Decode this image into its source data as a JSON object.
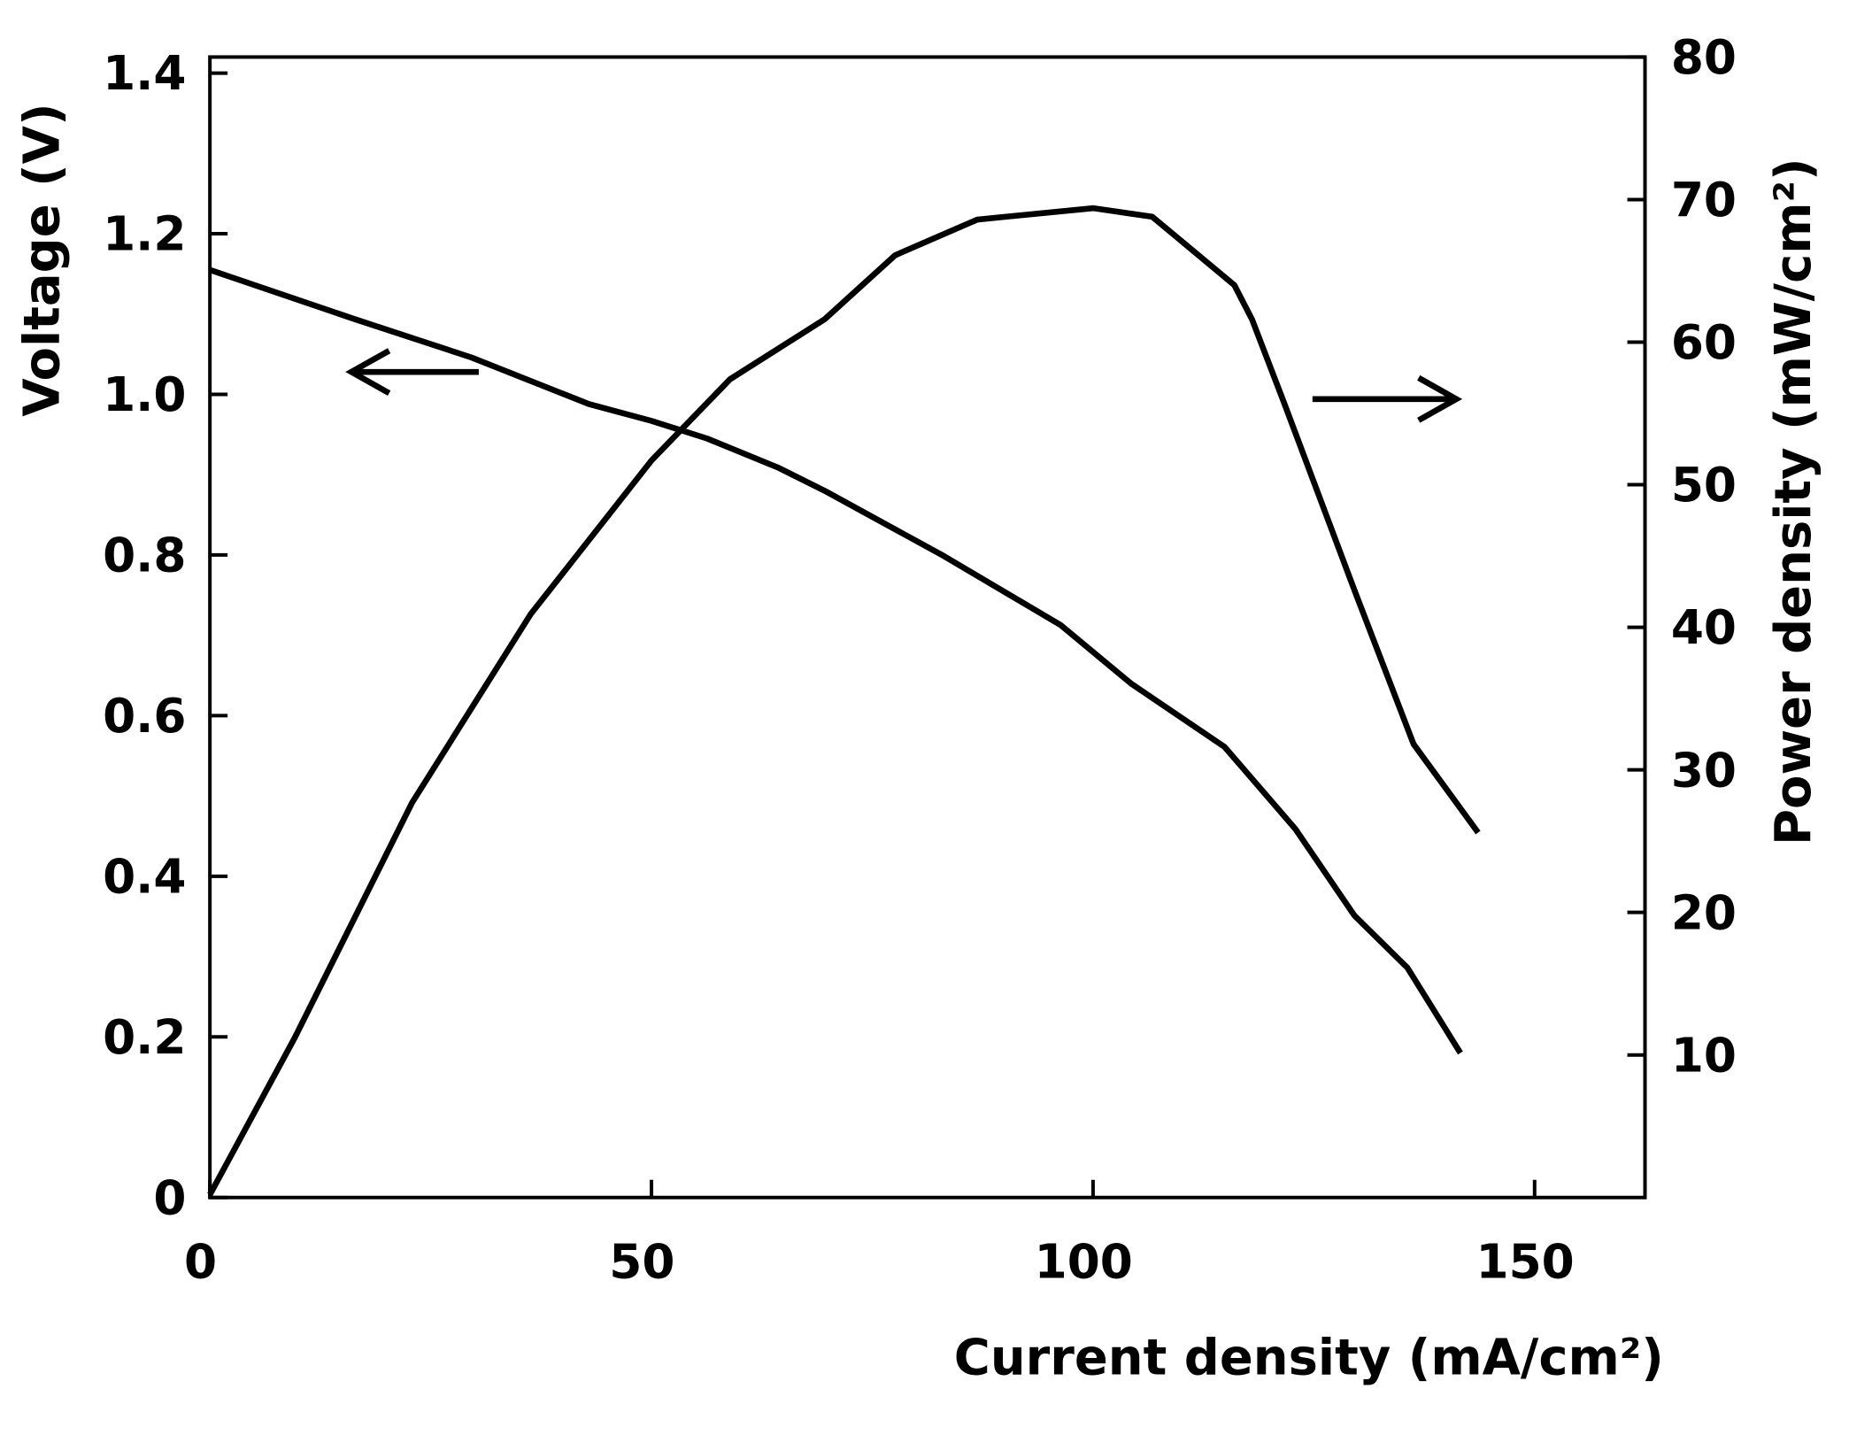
{
  "chart_data": {
    "type": "line",
    "xlabel": "Current density (mA/cm²)",
    "ylabel": "Voltage (V)",
    "y2label": "Power density (mW/cm²)",
    "xlim": [
      0,
      162.5
    ],
    "xticks": [
      0,
      50,
      100,
      150
    ],
    "ylim": [
      0,
      1.42
    ],
    "yticks": [
      0,
      0.2,
      0.4,
      0.6,
      0.8,
      {
        "value": 1,
        "label": "1.0"
      },
      1.2,
      1.4
    ],
    "y2lim": [
      0,
      80
    ],
    "y2ticks": [
      10,
      20,
      30,
      40,
      50,
      60,
      70,
      80
    ],
    "series": [
      {
        "name": "Voltage",
        "color": "#000000",
        "x": [
          0,
          16.3,
          29.6,
          42.9,
          50,
          56.3,
          64.3,
          69.6,
          82.9,
          96.3,
          104.3,
          114.9,
          122.9,
          129.6,
          135.6,
          141.6
        ],
        "values": [
          1.155,
          1.094,
          1.046,
          0.988,
          0.967,
          0.945,
          0.909,
          0.88,
          0.8,
          0.713,
          0.64,
          0.561,
          0.459,
          0.351,
          0.286,
          0.18
        ]
      },
      {
        "name": "Power density",
        "color": "#000000",
        "axis": "y2",
        "x": [
          0,
          9.6,
          22.9,
          36.3,
          50,
          58.9,
          69.6,
          77.6,
          86.9,
          100,
          106.7,
          116,
          118,
          121.6,
          129.6,
          136.3,
          143.6
        ],
        "values": [
          0.2,
          11.2,
          27.7,
          40.9,
          51.7,
          57.4,
          61.6,
          66.1,
          68.6,
          69.4,
          68.8,
          64,
          61.6,
          55.8,
          42.6,
          31.8,
          25.6
        ]
      }
    ]
  }
}
